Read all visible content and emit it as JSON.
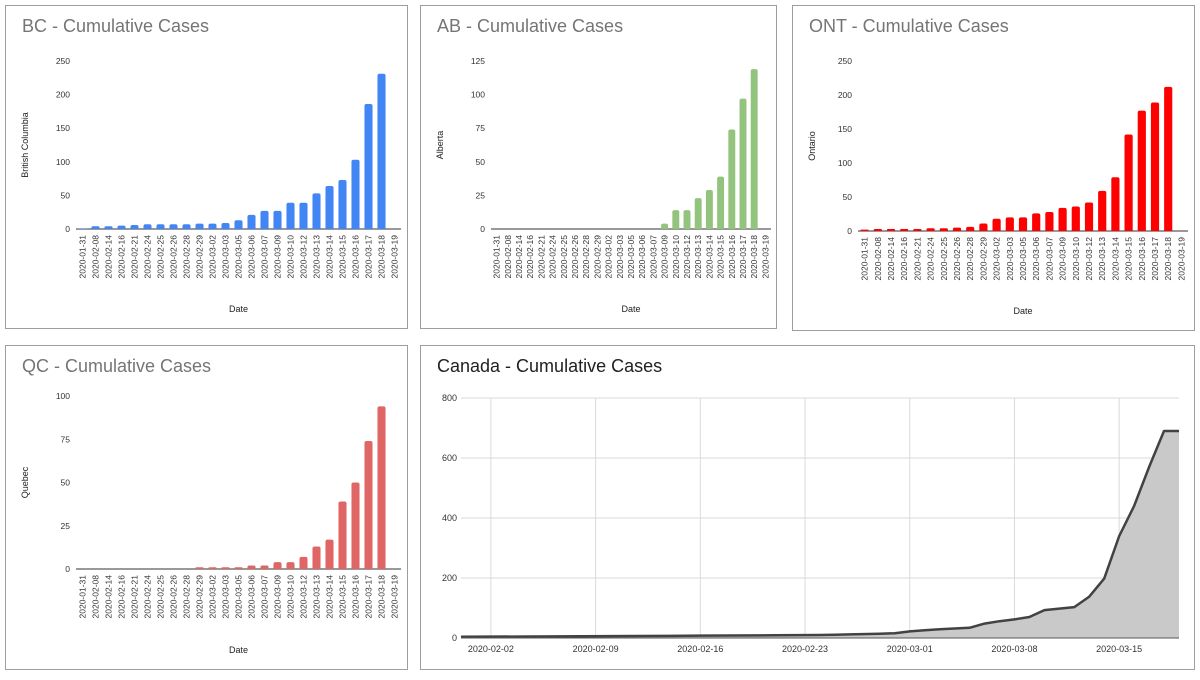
{
  "charts": [
    {
      "id": "bc",
      "type": "bar",
      "title": "BC - Cumulative Cases",
      "title_dark": false,
      "color": "#4285f4",
      "xlabel": "Date",
      "ylabel": "British Columbia",
      "ylim": [
        0,
        250
      ],
      "yticks": [
        "0",
        "50",
        "100",
        "150",
        "200",
        "250"
      ],
      "categories": [
        "2020-01-31",
        "2020-02-08",
        "2020-02-14",
        "2020-02-16",
        "2020-02-21",
        "2020-02-24",
        "2020-02-25",
        "2020-02-26",
        "2020-02-28",
        "2020-02-29",
        "2020-03-02",
        "2020-03-03",
        "2020-03-05",
        "2020-03-06",
        "2020-03-07",
        "2020-03-09",
        "2020-03-10",
        "2020-03-12",
        "2020-03-13",
        "2020-03-14",
        "2020-03-15",
        "2020-03-16",
        "2020-03-17",
        "2020-03-18",
        "2020-03-19"
      ],
      "values": [
        1,
        4,
        4,
        5,
        6,
        7,
        7,
        7,
        7,
        8,
        8,
        9,
        13,
        21,
        27,
        27,
        39,
        39,
        53,
        64,
        73,
        103,
        186,
        231,
        0
      ]
    },
    {
      "id": "ab",
      "type": "bar",
      "title": "AB - Cumulative Cases",
      "title_dark": false,
      "color": "#93c47d",
      "xlabel": "Date",
      "ylabel": "Alberta",
      "ylim": [
        0,
        125
      ],
      "yticks": [
        "0",
        "25",
        "50",
        "75",
        "100",
        "125"
      ],
      "categories": [
        "2020-01-31",
        "2020-02-08",
        "2020-02-14",
        "2020-02-16",
        "2020-02-21",
        "2020-02-24",
        "2020-02-25",
        "2020-02-26",
        "2020-02-28",
        "2020-02-29",
        "2020-03-02",
        "2020-03-03",
        "2020-03-05",
        "2020-03-06",
        "2020-03-07",
        "2020-03-09",
        "2020-03-10",
        "2020-03-12",
        "2020-03-13",
        "2020-03-14",
        "2020-03-15",
        "2020-03-16",
        "2020-03-17",
        "2020-03-18",
        "2020-03-19"
      ],
      "values": [
        0,
        0,
        0,
        0,
        0,
        0,
        0,
        0,
        0,
        0,
        0,
        0,
        0,
        0,
        0,
        4,
        14,
        14,
        23,
        29,
        39,
        74,
        97,
        119,
        0
      ]
    },
    {
      "id": "ont",
      "type": "bar",
      "title": "ONT - Cumulative Cases",
      "title_dark": false,
      "color": "#ff0000",
      "xlabel": "Date",
      "ylabel": "Ontario",
      "ylim": [
        0,
        250
      ],
      "yticks": [
        "0",
        "50",
        "100",
        "150",
        "200",
        "250"
      ],
      "categories": [
        "2020-01-31",
        "2020-02-08",
        "2020-02-14",
        "2020-02-16",
        "2020-02-21",
        "2020-02-24",
        "2020-02-25",
        "2020-02-26",
        "2020-02-28",
        "2020-02-29",
        "2020-03-02",
        "2020-03-03",
        "2020-03-05",
        "2020-03-06",
        "2020-03-07",
        "2020-03-09",
        "2020-03-10",
        "2020-03-12",
        "2020-03-13",
        "2020-03-14",
        "2020-03-15",
        "2020-03-16",
        "2020-03-17",
        "2020-03-18",
        "2020-03-19"
      ],
      "values": [
        2,
        3,
        3,
        3,
        3,
        4,
        4,
        5,
        6,
        11,
        18,
        20,
        20,
        26,
        28,
        34,
        36,
        42,
        59,
        79,
        142,
        177,
        189,
        212,
        0
      ]
    },
    {
      "id": "qc",
      "type": "bar",
      "title": "QC - Cumulative Cases",
      "title_dark": false,
      "color": "#e06666",
      "xlabel": "Date",
      "ylabel": "Quebec",
      "ylim": [
        0,
        100
      ],
      "yticks": [
        "0",
        "25",
        "50",
        "75",
        "100"
      ],
      "categories": [
        "2020-01-31",
        "2020-02-08",
        "2020-02-14",
        "2020-02-16",
        "2020-02-21",
        "2020-02-24",
        "2020-02-25",
        "2020-02-26",
        "2020-02-28",
        "2020-02-29",
        "2020-03-02",
        "2020-03-03",
        "2020-03-05",
        "2020-03-06",
        "2020-03-07",
        "2020-03-09",
        "2020-03-10",
        "2020-03-12",
        "2020-03-13",
        "2020-03-14",
        "2020-03-15",
        "2020-03-16",
        "2020-03-17",
        "2020-03-18",
        "2020-03-19"
      ],
      "values": [
        0,
        0,
        0,
        0,
        0,
        0,
        0,
        0,
        0,
        1,
        1,
        1,
        1,
        2,
        2,
        4,
        4,
        7,
        13,
        17,
        39,
        50,
        74,
        94,
        0
      ]
    },
    {
      "id": "canada",
      "type": "area",
      "title": "Canada - Cumulative Cases",
      "title_dark": true,
      "color": "#424242",
      "fill": "#c9c9c9",
      "xlabel": "",
      "ylabel": "",
      "ylim": [
        0,
        800
      ],
      "yticks": [
        "0",
        "200",
        "400",
        "600",
        "800"
      ],
      "xlim": [
        "2020-01-31",
        "2020-03-19"
      ],
      "xticks": [
        "2020-02-02",
        "2020-02-09",
        "2020-02-16",
        "2020-02-23",
        "2020-03-01",
        "2020-03-08",
        "2020-03-15"
      ],
      "x": [
        "2020-01-31",
        "2020-02-08",
        "2020-02-14",
        "2020-02-16",
        "2020-02-21",
        "2020-02-24",
        "2020-02-25",
        "2020-02-26",
        "2020-02-28",
        "2020-02-29",
        "2020-03-01",
        "2020-03-02",
        "2020-03-03",
        "2020-03-05",
        "2020-03-06",
        "2020-03-07",
        "2020-03-08",
        "2020-03-09",
        "2020-03-10",
        "2020-03-12",
        "2020-03-13",
        "2020-03-14",
        "2020-03-15",
        "2020-03-16",
        "2020-03-17",
        "2020-03-18",
        "2020-03-19"
      ],
      "values": [
        4,
        6,
        7,
        8,
        9,
        10,
        11,
        12,
        14,
        16,
        22,
        26,
        29,
        34,
        48,
        56,
        62,
        70,
        93,
        103,
        138,
        198,
        340,
        440,
        570,
        690,
        690
      ]
    }
  ]
}
